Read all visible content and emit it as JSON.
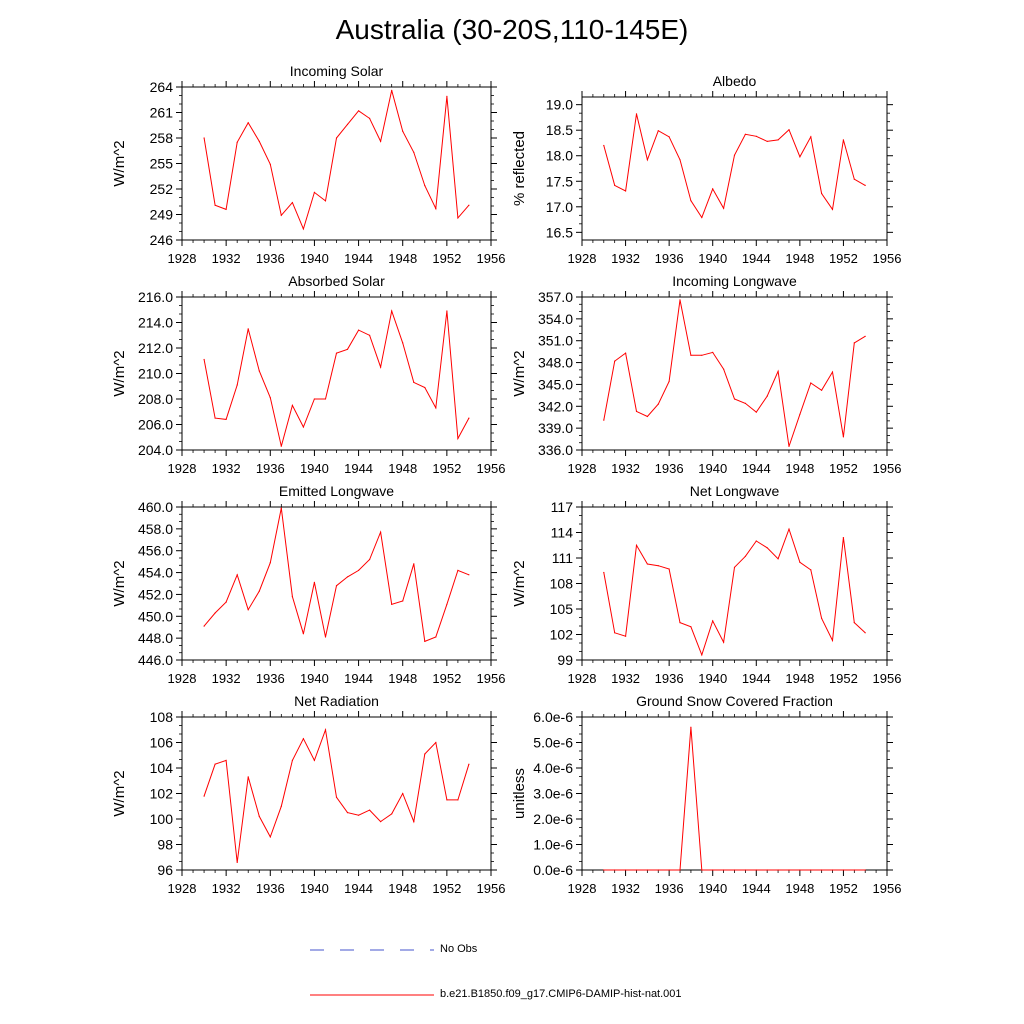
{
  "title": "Australia (30-20S,110-145E)",
  "legend": {
    "items": [
      {
        "label": "No Obs",
        "color": "#4455cc",
        "style": "dashed"
      },
      {
        "label": "b.e21.B1850.f09_g17.CMIP6-DAMIP-hist-nat.001",
        "color": "#ff0000",
        "style": "solid"
      }
    ]
  },
  "chart_data": [
    {
      "type": "line",
      "title": "Incoming Solar",
      "ylabel": "W/m^2",
      "xlim": [
        1928,
        1956
      ],
      "ylim": [
        246,
        264
      ],
      "xticks": [
        1928,
        1932,
        1936,
        1940,
        1944,
        1948,
        1952,
        1956
      ],
      "yticks": [
        246,
        249,
        252,
        255,
        258,
        261,
        264
      ],
      "ytick_labels": [
        "246",
        "249",
        "252",
        "255",
        "258",
        "261",
        "264"
      ],
      "series": [
        {
          "color": "#ff0000",
          "x": [
            1930,
            1931,
            1932,
            1933,
            1934,
            1935,
            1936,
            1937,
            1938,
            1939,
            1940,
            1941,
            1942,
            1943,
            1944,
            1945,
            1946,
            1947,
            1948,
            1949,
            1950,
            1951,
            1952,
            1953,
            1954
          ],
          "y": [
            258.0,
            250.1,
            249.6,
            257.5,
            259.8,
            257.6,
            254.9,
            248.9,
            250.4,
            247.3,
            251.6,
            250.6,
            258.0,
            259.6,
            261.2,
            260.3,
            257.6,
            263.6,
            258.8,
            256.3,
            252.4,
            249.7,
            262.9,
            248.6,
            250.1
          ]
        }
      ]
    },
    {
      "type": "line",
      "title": "Albedo",
      "ylabel": "% reflected",
      "xlim": [
        1928,
        1956
      ],
      "ylim": [
        16.35,
        19.15
      ],
      "xticks": [
        1928,
        1932,
        1936,
        1940,
        1944,
        1948,
        1952,
        1956
      ],
      "yticks": [
        16.5,
        17.0,
        17.5,
        18.0,
        18.5,
        19.0
      ],
      "ytick_labels": [
        "16.5",
        "17.0",
        "17.5",
        "18.0",
        "18.5",
        "19.0"
      ],
      "series": [
        {
          "color": "#ff0000",
          "x": [
            1930,
            1931,
            1932,
            1933,
            1934,
            1935,
            1936,
            1937,
            1938,
            1939,
            1940,
            1941,
            1942,
            1943,
            1944,
            1945,
            1946,
            1947,
            1948,
            1949,
            1950,
            1951,
            1952,
            1953,
            1954
          ],
          "y": [
            18.2,
            17.42,
            17.31,
            18.82,
            17.92,
            18.49,
            18.37,
            17.92,
            17.12,
            16.79,
            17.35,
            16.97,
            18.01,
            18.42,
            18.38,
            18.28,
            18.31,
            18.51,
            17.98,
            18.37,
            17.26,
            16.95,
            18.31,
            17.54,
            17.42
          ]
        }
      ]
    },
    {
      "type": "line",
      "title": "Absorbed Solar",
      "ylabel": "W/m^2",
      "xlim": [
        1928,
        1956
      ],
      "ylim": [
        204,
        216
      ],
      "xticks": [
        1928,
        1932,
        1936,
        1940,
        1944,
        1948,
        1952,
        1956
      ],
      "yticks": [
        204,
        206,
        208,
        210,
        212,
        214,
        216
      ],
      "ytick_labels": [
        "204.0",
        "206.0",
        "208.0",
        "210.0",
        "212.0",
        "214.0",
        "216.0"
      ],
      "series": [
        {
          "color": "#ff0000",
          "x": [
            1930,
            1931,
            1932,
            1933,
            1934,
            1935,
            1936,
            1937,
            1938,
            1939,
            1940,
            1941,
            1942,
            1943,
            1944,
            1945,
            1946,
            1947,
            1948,
            1949,
            1950,
            1951,
            1952,
            1953,
            1954
          ],
          "y": [
            211.1,
            206.5,
            206.4,
            209.1,
            213.5,
            210.2,
            208.1,
            204.3,
            207.5,
            205.8,
            208.0,
            208.0,
            211.6,
            211.9,
            213.4,
            213.0,
            210.5,
            214.9,
            212.4,
            209.3,
            208.9,
            207.3,
            214.9,
            204.9,
            206.5
          ]
        }
      ]
    },
    {
      "type": "line",
      "title": "Incoming Longwave",
      "ylabel": "W/m^2",
      "xlim": [
        1928,
        1956
      ],
      "ylim": [
        336,
        357
      ],
      "xticks": [
        1928,
        1932,
        1936,
        1940,
        1944,
        1948,
        1952,
        1956
      ],
      "yticks": [
        336,
        339,
        342,
        345,
        348,
        351,
        354,
        357
      ],
      "ytick_labels": [
        "336.0",
        "339.0",
        "342.0",
        "345.0",
        "348.0",
        "351.0",
        "354.0",
        "357.0"
      ],
      "series": [
        {
          "color": "#ff0000",
          "x": [
            1930,
            1931,
            1932,
            1933,
            1934,
            1935,
            1936,
            1937,
            1938,
            1939,
            1940,
            1941,
            1942,
            1943,
            1944,
            1945,
            1946,
            1947,
            1948,
            1949,
            1950,
            1951,
            1952,
            1953,
            1954
          ],
          "y": [
            340.1,
            348.2,
            349.3,
            341.3,
            340.6,
            342.3,
            345.4,
            356.6,
            349.0,
            349.0,
            349.4,
            347.1,
            343.0,
            342.4,
            341.2,
            343.4,
            346.8,
            336.5,
            340.9,
            345.2,
            344.2,
            346.7,
            337.8,
            350.7,
            351.6
          ]
        }
      ]
    },
    {
      "type": "line",
      "title": "Emitted Longwave",
      "ylabel": "W/m^2",
      "xlim": [
        1928,
        1956
      ],
      "ylim": [
        446,
        460
      ],
      "xticks": [
        1928,
        1932,
        1936,
        1940,
        1944,
        1948,
        1952,
        1956
      ],
      "yticks": [
        446,
        448,
        450,
        452,
        454,
        456,
        458,
        460
      ],
      "ytick_labels": [
        "446.0",
        "448.0",
        "450.0",
        "452.0",
        "454.0",
        "456.0",
        "458.0",
        "460.0"
      ],
      "series": [
        {
          "color": "#ff0000",
          "x": [
            1930,
            1931,
            1932,
            1933,
            1934,
            1935,
            1936,
            1937,
            1938,
            1939,
            1940,
            1941,
            1942,
            1943,
            1944,
            1945,
            1946,
            1947,
            1948,
            1949,
            1950,
            1951,
            1952,
            1953,
            1954
          ],
          "y": [
            449.1,
            450.3,
            451.3,
            453.8,
            450.6,
            452.3,
            454.9,
            459.9,
            451.8,
            448.4,
            453.1,
            448.1,
            452.8,
            453.6,
            454.2,
            455.2,
            457.7,
            451.1,
            451.4,
            454.8,
            447.7,
            448.1,
            451.1,
            454.2,
            453.8
          ]
        }
      ]
    },
    {
      "type": "line",
      "title": "Net Longwave",
      "ylabel": "W/m^2",
      "xlim": [
        1928,
        1956
      ],
      "ylim": [
        99,
        117
      ],
      "xticks": [
        1928,
        1932,
        1936,
        1940,
        1944,
        1948,
        1952,
        1956
      ],
      "yticks": [
        99,
        102,
        105,
        108,
        111,
        114,
        117
      ],
      "ytick_labels": [
        "99",
        "102",
        "105",
        "108",
        "111",
        "114",
        "117"
      ],
      "series": [
        {
          "color": "#ff0000",
          "x": [
            1930,
            1931,
            1932,
            1933,
            1934,
            1935,
            1936,
            1937,
            1938,
            1939,
            1940,
            1941,
            1942,
            1943,
            1944,
            1945,
            1946,
            1947,
            1948,
            1949,
            1950,
            1951,
            1952,
            1953,
            1954
          ],
          "y": [
            109.3,
            102.2,
            101.8,
            112.5,
            110.3,
            110.1,
            109.7,
            103.4,
            102.9,
            99.6,
            103.6,
            101.1,
            109.9,
            111.2,
            113.0,
            112.2,
            110.9,
            114.4,
            110.5,
            109.6,
            103.9,
            101.3,
            113.4,
            103.4,
            102.2
          ]
        }
      ]
    },
    {
      "type": "line",
      "title": "Net Radiation",
      "ylabel": "W/m^2",
      "xlim": [
        1928,
        1956
      ],
      "ylim": [
        96,
        108
      ],
      "xticks": [
        1928,
        1932,
        1936,
        1940,
        1944,
        1948,
        1952,
        1956
      ],
      "yticks": [
        96,
        98,
        100,
        102,
        104,
        106,
        108
      ],
      "ytick_labels": [
        "96",
        "98",
        "100",
        "102",
        "104",
        "106",
        "108"
      ],
      "series": [
        {
          "color": "#ff0000",
          "x": [
            1930,
            1931,
            1932,
            1933,
            1934,
            1935,
            1936,
            1937,
            1938,
            1939,
            1940,
            1941,
            1942,
            1943,
            1944,
            1945,
            1946,
            1947,
            1948,
            1949,
            1950,
            1951,
            1952,
            1953,
            1954
          ],
          "y": [
            101.8,
            104.3,
            104.6,
            96.6,
            103.3,
            100.2,
            98.6,
            101.0,
            104.6,
            106.3,
            104.6,
            107.0,
            101.7,
            100.5,
            100.3,
            100.7,
            99.8,
            100.4,
            102.0,
            99.8,
            105.1,
            106.0,
            101.5,
            101.5,
            104.3
          ]
        }
      ]
    },
    {
      "type": "line",
      "title": "Ground Snow Covered Fraction",
      "ylabel": "unitless",
      "xlim": [
        1928,
        1956
      ],
      "ylim": [
        0,
        6e-06
      ],
      "xticks": [
        1928,
        1932,
        1936,
        1940,
        1944,
        1948,
        1952,
        1956
      ],
      "yticks": [
        0,
        1e-06,
        2e-06,
        3e-06,
        4e-06,
        5e-06,
        6e-06
      ],
      "ytick_labels": [
        "0.0e-6",
        "1.0e-6",
        "2.0e-6",
        "3.0e-6",
        "4.0e-6",
        "5.0e-6",
        "6.0e-6"
      ],
      "series": [
        {
          "color": "#ff0000",
          "x": [
            1930,
            1931,
            1932,
            1933,
            1934,
            1935,
            1936,
            1937,
            1938,
            1939,
            1940,
            1941,
            1942,
            1943,
            1944,
            1945,
            1946,
            1947,
            1948,
            1949,
            1950,
            1951,
            1952,
            1953,
            1954
          ],
          "y": [
            0,
            0,
            0,
            0,
            0,
            0,
            0,
            0,
            5.6e-06,
            0,
            0,
            0,
            0,
            0,
            0,
            0,
            0,
            0,
            0,
            0,
            0,
            0,
            0,
            0,
            0
          ]
        }
      ]
    }
  ]
}
